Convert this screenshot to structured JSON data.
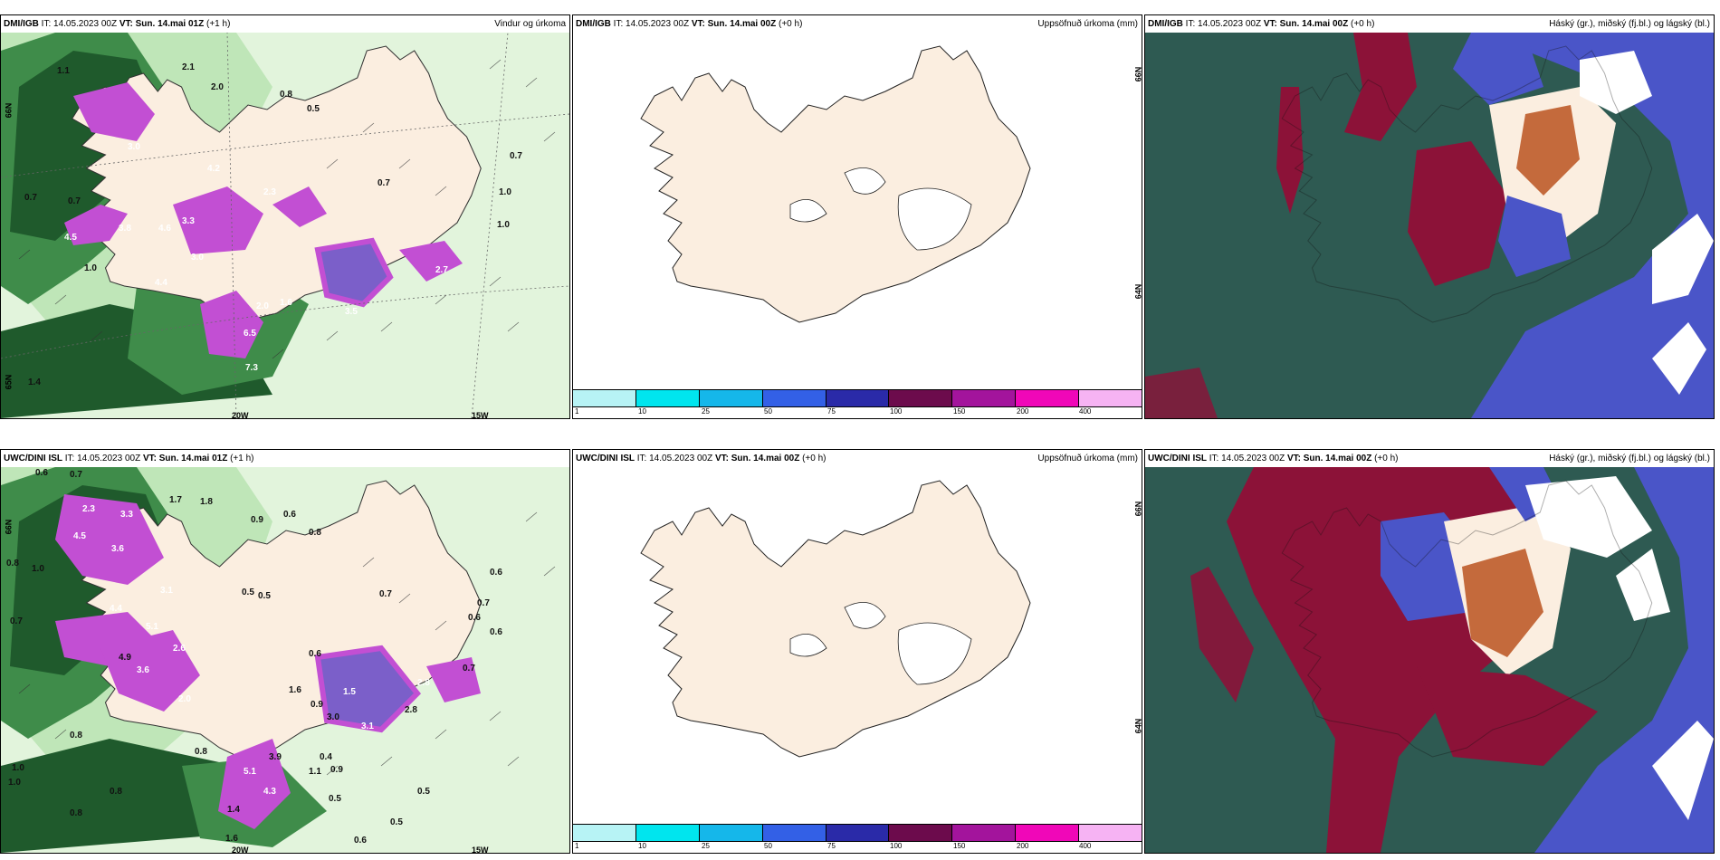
{
  "colors": {
    "land": "#fbeee0",
    "dark_green": "#1f5a2c",
    "mid_green": "#3f8c4a",
    "light_green": "#bfe6b8",
    "pale_green": "#e2f4dc",
    "magenta": "#c24fd3",
    "violet": "#7b5fc9",
    "sea_teal": "#2e5a52",
    "blue_cloud": "#4a55c8",
    "crimson": "#8c1238",
    "orange": "#c46a3c"
  },
  "colorbar": {
    "colors": [
      "#b7f3f5",
      "#00e5ee",
      "#15b7ea",
      "#3360e6",
      "#2a2aa8",
      "#6c0b4c",
      "#a3149c",
      "#f007b8",
      "#f6b3f3"
    ],
    "ticks": [
      "1",
      "10",
      "25",
      "50",
      "75",
      "100",
      "150",
      "200",
      "400"
    ]
  },
  "panels": {
    "p1": {
      "model": "DMI/IGB",
      "it": " IT: 14.05.2023 00Z ",
      "vt_label": "VT: Sun. 14.mai 01Z",
      "lead": " (+1 h)",
      "right": "Vindur og úrkoma",
      "lon1": "20W",
      "lon2": "15W",
      "lat1": "66N",
      "lat2": "65N",
      "values": [
        "1.1",
        "2.1",
        "2.0",
        "0.8",
        "0.5",
        "3.0",
        "0.7",
        "0.7",
        "0.7",
        "1.0",
        "3.8",
        "4.6",
        "3.3",
        "4.5",
        "1.0",
        "6.5",
        "7.3",
        "2.0",
        "1.4",
        "2.3",
        "1.6",
        "4.4",
        "4.2",
        "3.0",
        "3.5",
        "2.7",
        "0.7",
        "1.0"
      ]
    },
    "p2": {
      "model": "DMI/IGB",
      "it": " IT: 14.05.2023 00Z ",
      "vt_label": "VT: Sun. 14.mai 00Z",
      "lead": " (+0 h)",
      "right": "Uppsöfnuð úrkoma (mm)",
      "lat1": "66N",
      "lat2": "64N"
    },
    "p3": {
      "model": "DMI/IGB",
      "it": " IT: 14.05.2023 00Z ",
      "vt_label": "VT: Sun. 14.mai 00Z",
      "lead": " (+0 h)",
      "right": "Háský (gr.), miðský (fj.bl.) og lágský (bl.)"
    },
    "p4": {
      "model": "UWC/DINI ISL",
      "it": " IT: 14.05.2023 00Z ",
      "vt_label": "VT: Sun. 14.mai 01Z",
      "lead": " (+1 h)",
      "right": "",
      "lon1": "20W",
      "lon2": "15W",
      "lat1": "66N",
      "values": [
        "0.6",
        "0.7",
        "1.7",
        "1.8",
        "0.9",
        "0.6",
        "0.8",
        "0.8",
        "1.0",
        "0.7",
        "0.7",
        "0.5",
        "0.5",
        "0.6",
        "0.6",
        "0.7",
        "0.6",
        "0.8",
        "0.6",
        "1.0",
        "1.0",
        "0.8",
        "0.8",
        "0.8",
        "1.4",
        "1.6",
        "0.5",
        "0.5",
        "0.6",
        "4.9",
        "3.9",
        "3.0",
        "2.8",
        "0.9",
        "1.1",
        "0.4",
        "0.9",
        "0.5",
        "1.6",
        "0.7"
      ],
      "white_values": [
        "2.3",
        "3.3",
        "4.5",
        "3.6",
        "3.1",
        "4.4",
        "5.1",
        "2.6",
        "3.6",
        "2.8",
        "1.5",
        "2.0",
        "5.1",
        "4.3",
        "3.1"
      ]
    },
    "p5": {
      "model": "UWC/DINI ISL",
      "it": " IT: 14.05.2023 00Z ",
      "vt_label": "VT: Sun. 14.mai 00Z",
      "lead": " (+0 h)",
      "right": "Uppsöfnuð úrkoma (mm)",
      "lat1": "66N",
      "lat2": "64N"
    },
    "p6": {
      "model": "UWC/DINI ISL",
      "it": " IT: 14.05.2023 00Z ",
      "vt_label": "VT: Sun. 14.mai 00Z",
      "lead": " (+0 h)",
      "right": "Háský (gr.), miðský (fj.bl.) og lágský (bl.)"
    }
  }
}
